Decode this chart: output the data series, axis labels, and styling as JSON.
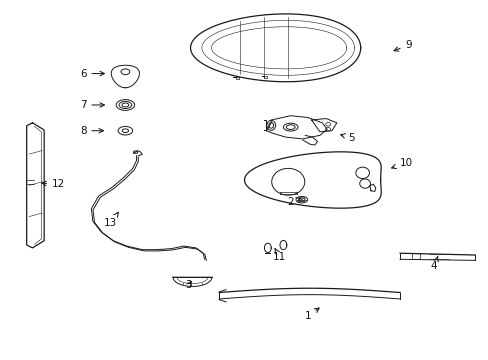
{
  "bg_color": "#ffffff",
  "line_color": "#1a1a1a",
  "label_color": "#111111",
  "labels": [
    [
      1,
      0.63,
      0.118,
      0.66,
      0.148
    ],
    [
      2,
      0.595,
      0.438,
      0.618,
      0.45
    ],
    [
      3,
      0.385,
      0.205,
      0.395,
      0.225
    ],
    [
      4,
      0.89,
      0.258,
      0.9,
      0.295
    ],
    [
      5,
      0.72,
      0.618,
      0.69,
      0.63
    ],
    [
      6,
      0.168,
      0.798,
      0.22,
      0.798
    ],
    [
      7,
      0.168,
      0.71,
      0.22,
      0.71
    ],
    [
      8,
      0.168,
      0.638,
      0.218,
      0.638
    ],
    [
      9,
      0.838,
      0.878,
      0.8,
      0.858
    ],
    [
      10,
      0.832,
      0.548,
      0.795,
      0.53
    ],
    [
      11,
      0.572,
      0.285,
      0.562,
      0.31
    ],
    [
      12,
      0.118,
      0.488,
      0.075,
      0.492
    ],
    [
      13,
      0.225,
      0.38,
      0.245,
      0.418
    ]
  ]
}
